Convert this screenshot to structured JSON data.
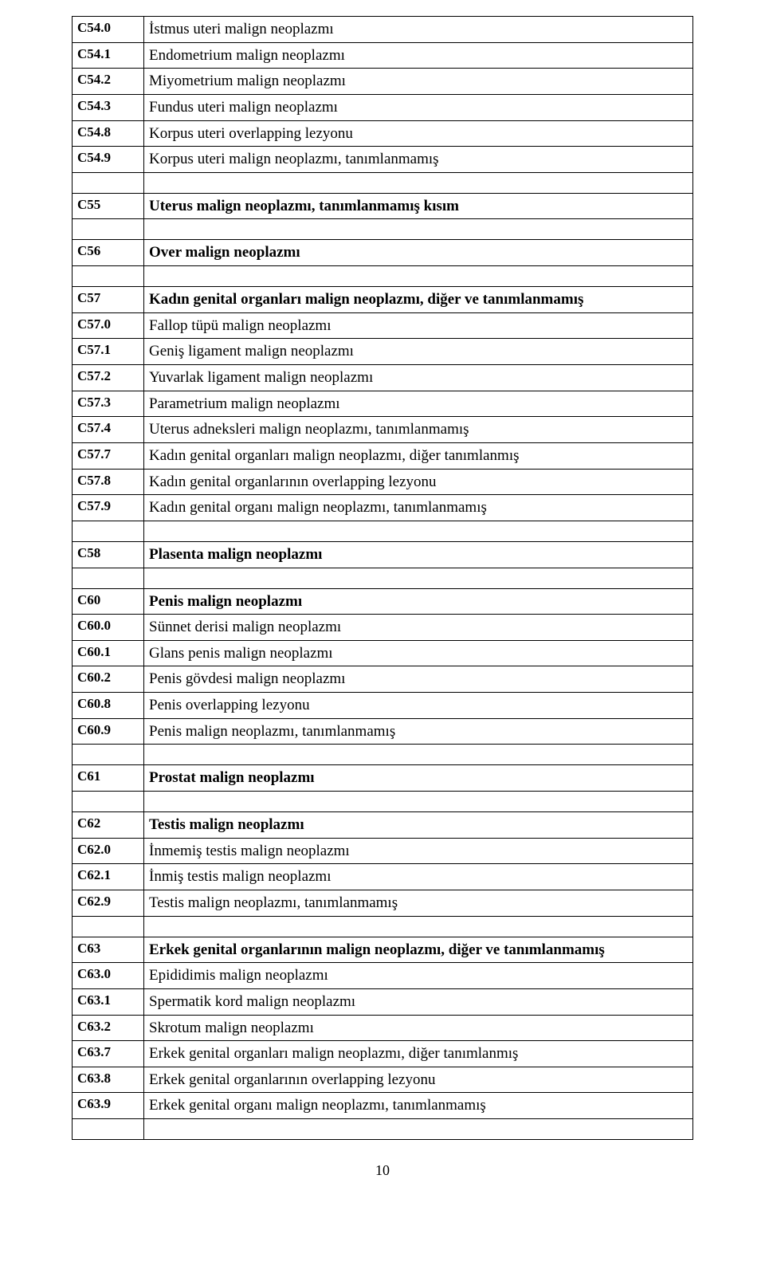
{
  "page_number": "10",
  "rows": [
    {
      "code": "C54.0",
      "desc": "İstmus uteri malign neoplazmı",
      "heading": false
    },
    {
      "code": "C54.1",
      "desc": "Endometrium malign neoplazmı",
      "heading": false
    },
    {
      "code": "C54.2",
      "desc": "Miyometrium malign neoplazmı",
      "heading": false
    },
    {
      "code": "C54.3",
      "desc": "Fundus uteri malign neoplazmı",
      "heading": false
    },
    {
      "code": "C54.8",
      "desc": "Korpus uteri overlapping lezyonu",
      "heading": false
    },
    {
      "code": "C54.9",
      "desc": "Korpus uteri malign neoplazmı, tanımlanmamış",
      "heading": false
    },
    {
      "spacer": true
    },
    {
      "code": "C55",
      "desc": "Uterus malign neoplazmı, tanımlanmamış kısım",
      "heading": true
    },
    {
      "spacer": true
    },
    {
      "code": "C56",
      "desc": "Over malign neoplazmı",
      "heading": true
    },
    {
      "spacer": true
    },
    {
      "code": "C57",
      "desc": "Kadın genital organları malign neoplazmı, diğer ve tanımlanmamış",
      "heading": true
    },
    {
      "code": "C57.0",
      "desc": "Fallop tüpü malign neoplazmı",
      "heading": false
    },
    {
      "code": "C57.1",
      "desc": "Geniş ligament malign neoplazmı",
      "heading": false
    },
    {
      "code": "C57.2",
      "desc": "Yuvarlak ligament malign neoplazmı",
      "heading": false
    },
    {
      "code": "C57.3",
      "desc": "Parametrium malign neoplazmı",
      "heading": false
    },
    {
      "code": "C57.4",
      "desc": "Uterus adneksleri malign neoplazmı, tanımlanmamış",
      "heading": false
    },
    {
      "code": "C57.7",
      "desc": "Kadın genital organları malign neoplazmı, diğer tanımlanmış",
      "heading": false
    },
    {
      "code": "C57.8",
      "desc": "Kadın genital organlarının overlapping lezyonu",
      "heading": false
    },
    {
      "code": "C57.9",
      "desc": "Kadın genital organı malign neoplazmı, tanımlanmamış",
      "heading": false
    },
    {
      "spacer": true
    },
    {
      "code": "C58",
      "desc": "Plasenta malign neoplazmı",
      "heading": true
    },
    {
      "spacer": true
    },
    {
      "code": "C60",
      "desc": "Penis malign neoplazmı",
      "heading": true
    },
    {
      "code": "C60.0",
      "desc": "Sünnet derisi malign neoplazmı",
      "heading": false
    },
    {
      "code": "C60.1",
      "desc": "Glans penis malign neoplazmı",
      "heading": false
    },
    {
      "code": "C60.2",
      "desc": "Penis gövdesi malign neoplazmı",
      "heading": false
    },
    {
      "code": "C60.8",
      "desc": "Penis overlapping lezyonu",
      "heading": false
    },
    {
      "code": "C60.9",
      "desc": "Penis malign neoplazmı, tanımlanmamış",
      "heading": false
    },
    {
      "spacer": true
    },
    {
      "code": "C61",
      "desc": "Prostat malign neoplazmı",
      "heading": true
    },
    {
      "spacer": true
    },
    {
      "code": "C62",
      "desc": "Testis malign neoplazmı",
      "heading": true
    },
    {
      "code": "C62.0",
      "desc": "İnmemiş testis malign neoplazmı",
      "heading": false
    },
    {
      "code": "C62.1",
      "desc": "İnmiş testis malign neoplazmı",
      "heading": false
    },
    {
      "code": "C62.9",
      "desc": "Testis malign neoplazmı, tanımlanmamış",
      "heading": false
    },
    {
      "spacer": true
    },
    {
      "code": "C63",
      "desc": "Erkek genital organlarının malign neoplazmı, diğer ve tanımlanmamış",
      "heading": true
    },
    {
      "code": "C63.0",
      "desc": "Epididimis malign neoplazmı",
      "heading": false
    },
    {
      "code": "C63.1",
      "desc": "Spermatik kord malign neoplazmı",
      "heading": false
    },
    {
      "code": "C63.2",
      "desc": "Skrotum malign neoplazmı",
      "heading": false
    },
    {
      "code": "C63.7",
      "desc": "Erkek genital organları malign neoplazmı, diğer tanımlanmış",
      "heading": false
    },
    {
      "code": "C63.8",
      "desc": "Erkek genital organlarının overlapping lezyonu",
      "heading": false
    },
    {
      "code": "C63.9",
      "desc": "Erkek genital organı malign neoplazmı, tanımlanmamış",
      "heading": false
    },
    {
      "spacer": true
    }
  ]
}
